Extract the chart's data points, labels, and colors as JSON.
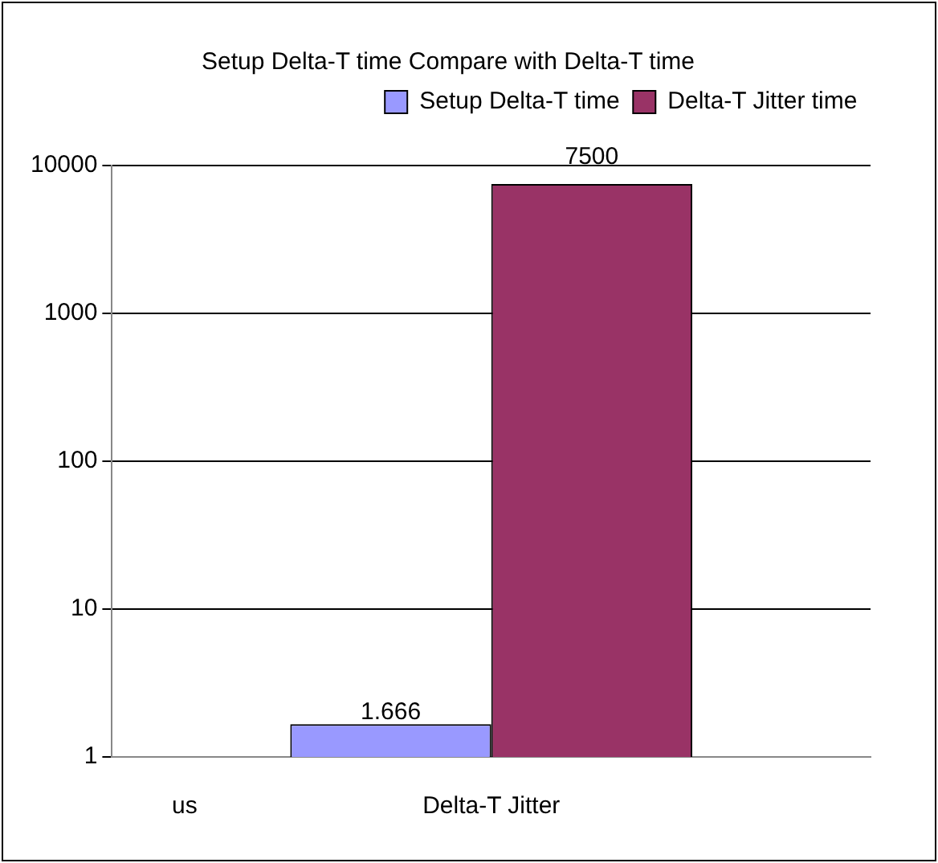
{
  "chart_data": {
    "type": "bar",
    "title": "Setup Delta-T time Compare with Delta-T time",
    "categories": [
      "Delta-T Jitter"
    ],
    "series": [
      {
        "name": "Setup Delta-T time",
        "color": "#9999ff",
        "values": [
          1.666
        ]
      },
      {
        "name": "Delta-T Jitter time",
        "color": "#993366",
        "values": [
          7500
        ]
      }
    ],
    "log": true,
    "ylim": [
      1,
      10000
    ],
    "yticks": [
      1,
      10,
      100,
      1000,
      10000
    ],
    "grid": "y",
    "legend": "top right",
    "data_labels": true,
    "annotations": [
      "us"
    ]
  }
}
